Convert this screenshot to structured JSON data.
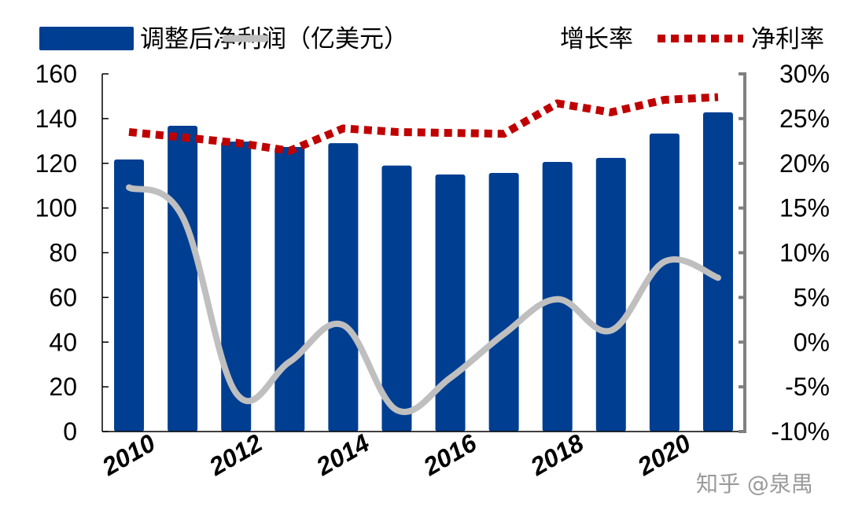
{
  "chart_data": {
    "type": "bar+line",
    "categories": [
      "2010",
      "2011",
      "2012",
      "2013",
      "2014",
      "2015",
      "2016",
      "2017",
      "2018",
      "2019",
      "2020",
      "2021"
    ],
    "x_tick_labels": [
      "2010",
      "2012",
      "2014",
      "2016",
      "2018",
      "2020"
    ],
    "series": [
      {
        "name": "调整后净利润（亿美元）",
        "type": "bar",
        "axis": "left",
        "color": "#003E92",
        "values": [
          121.7,
          136.8,
          129.7,
          127.3,
          129.0,
          119.0,
          115.0,
          115.7,
          120.6,
          122.4,
          133.3,
          142.8
        ]
      },
      {
        "name": "增长率",
        "type": "line",
        "axis": "right",
        "color": "#BFBFBF",
        "smooth": true,
        "values": [
          17.3,
          14.0,
          -5.7,
          -2.2,
          1.9,
          -7.6,
          -4.0,
          0.9,
          4.8,
          1.3,
          9.0,
          7.2
        ]
      },
      {
        "name": "净利率",
        "type": "line",
        "axis": "right",
        "color": "#C00000",
        "style": "dotted",
        "values": [
          23.5,
          22.9,
          22.3,
          21.4,
          23.9,
          23.5,
          23.4,
          23.3,
          26.7,
          25.7,
          27.1,
          27.4
        ]
      }
    ],
    "left_axis": {
      "range": [
        0,
        160
      ],
      "ticks": [
        "0",
        "20",
        "40",
        "60",
        "80",
        "100",
        "120",
        "140",
        "160"
      ]
    },
    "right_axis": {
      "range": [
        -10,
        30
      ],
      "ticks": [
        "-10%",
        "-5%",
        "0%",
        "5%",
        "10%",
        "15%",
        "20%",
        "25%",
        "30%"
      ]
    },
    "grid": false,
    "legend_placement": "top"
  },
  "watermark": "知乎 @泉禺"
}
